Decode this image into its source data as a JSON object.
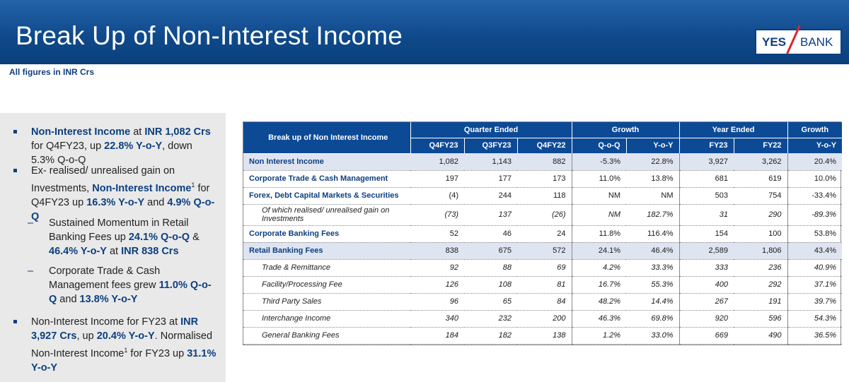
{
  "header": {
    "title": "Break Up of Non-Interest Income",
    "logo_left": "YES",
    "logo_right": "BANK"
  },
  "subtitle": "All figures in INR Crs",
  "bullets": {
    "b1": {
      "t1": "Non-Interest Income",
      "t2": " at ",
      "t3": "INR 1,082 Crs",
      "t4": " for Q4FY23, up ",
      "t5": "22.8% Y-o-Y",
      "t6": ", down 5.3% Q-o-Q"
    },
    "b2": {
      "t1": "Ex- realised/ unrealised gain on Investments, ",
      "t2": "Non-Interest Income",
      "sup": "1",
      "t3": " for Q4FY23 up ",
      "t4": "16.3% Y-o-Y",
      "t5": " and ",
      "t6": "4.9% Q-o-Q"
    },
    "b3": {
      "t1": "Sustained Momentum in Retail Banking Fees up ",
      "t2": "24.1% Q-o-Q",
      "t3": " & ",
      "t4": "46.4% Y-o-Y",
      "t5": " at ",
      "t6": "INR 838 Crs"
    },
    "b4": {
      "t1": "Corporate Trade & Cash Management fees grew ",
      "t2": "11.0% Q-o-Q",
      "t3": " and ",
      "t4": "13.8% Y-o-Y"
    },
    "b5": {
      "t1": "Non-Interest Income for FY23 at ",
      "t2": "INR 3,927 Crs",
      "t3": ", up ",
      "t4": "20.4% Y-o-Y",
      "t5": ". Normalised Non-Interest Income",
      "sup": "1",
      "t6": " for FY23 up ",
      "t7": "31.1% Y-o-Y"
    },
    "dash": "–"
  },
  "table": {
    "title": "Break up of Non Interest Income",
    "groups": [
      "Quarter Ended",
      "Growth",
      "Year Ended",
      "Growth"
    ],
    "columns": [
      "Q4FY23",
      "Q3FY23",
      "Q4FY22",
      "Q-o-Q",
      "Y-o-Y",
      "FY23",
      "FY22",
      "Y-o-Y"
    ],
    "rows": [
      {
        "label": "Non Interest Income",
        "values": [
          "1,082",
          "1,143",
          "882",
          "-5.3%",
          "22.8%",
          "3,927",
          "3,262",
          "20.4%"
        ]
      },
      {
        "label": "Corporate Trade & Cash Management",
        "values": [
          "197",
          "177",
          "173",
          "11.0%",
          "13.8%",
          "681",
          "619",
          "10.0%"
        ]
      },
      {
        "label": "Forex, Debt Capital Markets & Securities",
        "values": [
          "(4)",
          "244",
          "118",
          "NM",
          "NM",
          "503",
          "754",
          "-33.4%"
        ]
      },
      {
        "label": "Of which realised/ unrealised gain on Investments",
        "values": [
          "(73)",
          "137",
          "(26)",
          "NM",
          "182.7%",
          "31",
          "290",
          "-89.3%"
        ]
      },
      {
        "label": "Corporate Banking Fees",
        "values": [
          "52",
          "46",
          "24",
          "11.8%",
          "116.4%",
          "154",
          "100",
          "53.8%"
        ]
      },
      {
        "label": "Retail Banking Fees",
        "values": [
          "838",
          "675",
          "572",
          "24.1%",
          "46.4%",
          "2,589",
          "1,806",
          "43.4%"
        ]
      },
      {
        "label": "Trade & Remittance",
        "values": [
          "92",
          "88",
          "69",
          "4.2%",
          "33.3%",
          "333",
          "236",
          "40.9%"
        ]
      },
      {
        "label": "Facility/Processing Fee",
        "values": [
          "126",
          "108",
          "81",
          "16.7%",
          "55.3%",
          "400",
          "292",
          "37.1%"
        ]
      },
      {
        "label": "Third Party Sales",
        "values": [
          "96",
          "65",
          "84",
          "48.2%",
          "14.4%",
          "267",
          "191",
          "39.7%"
        ]
      },
      {
        "label": "Interchange Income",
        "values": [
          "340",
          "232",
          "200",
          "46.3%",
          "69.8%",
          "920",
          "596",
          "54.3%"
        ]
      },
      {
        "label": "General Banking Fees",
        "values": [
          "184",
          "182",
          "138",
          "1.2%",
          "33.0%",
          "669",
          "490",
          "36.5%"
        ]
      }
    ]
  }
}
